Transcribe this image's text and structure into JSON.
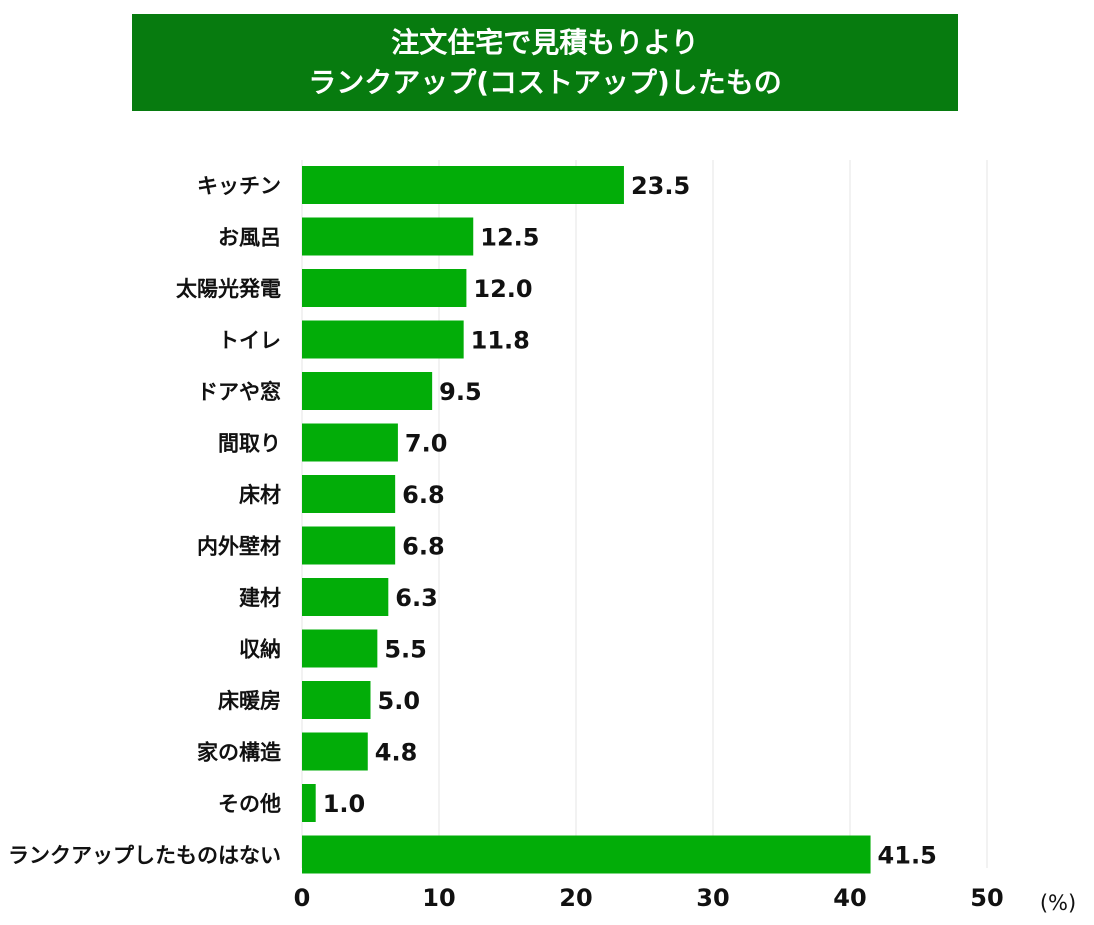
{
  "title": {
    "line1": "注文住宅で見積もりより",
    "line2": "ランクアップ(コストアップ)したもの"
  },
  "chart_data": {
    "type": "bar",
    "orientation": "horizontal",
    "categories": [
      "キッチン",
      "お風呂",
      "太陽光発電",
      "トイレ",
      "ドアや窓",
      "間取り",
      "床材",
      "内外壁材",
      "建材",
      "収納",
      "床暖房",
      "家の構造",
      "その他",
      "ランクアップしたものはない"
    ],
    "values": [
      23.5,
      12.5,
      12.0,
      11.8,
      9.5,
      7.0,
      6.8,
      6.8,
      6.3,
      5.5,
      5.0,
      4.8,
      1.0,
      41.5
    ],
    "value_labels": [
      "23.5",
      "12.5",
      "12.0",
      "11.8",
      "9.5",
      "7.0",
      "6.8",
      "6.8",
      "6.3",
      "5.5",
      "5.0",
      "4.8",
      "1.0",
      "41.5"
    ],
    "xlim": [
      0,
      50
    ],
    "xticks": [
      "0",
      "10",
      "20",
      "30",
      "40",
      "50"
    ],
    "unit_label": "(%)",
    "grid": "vertical",
    "colors": {
      "bar": "#02ad08",
      "title_bg": "#077b0f",
      "grid": "#e6e6e6"
    }
  }
}
